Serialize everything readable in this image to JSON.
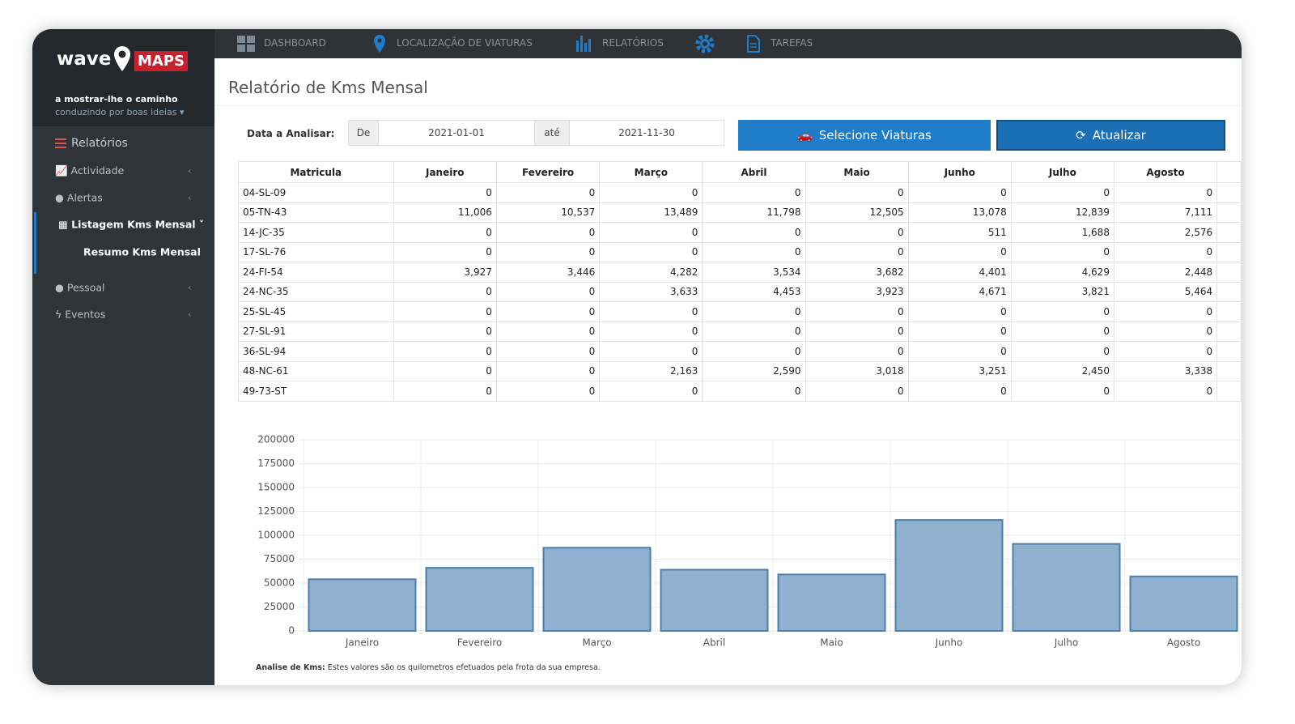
{
  "brand": {
    "wave": "wave",
    "maps": "MAPS",
    "tagline": "a mostrar-lhe o caminho",
    "subtagline": "conduzindo por boas ideias"
  },
  "sidebar": {
    "section": "Relatórios",
    "items": [
      "Actividade",
      "Alertas",
      "Listagem Kms Mensal",
      "Resumo Kms Mensal",
      "Pessoal",
      "Eventos"
    ]
  },
  "nav": [
    "DASHBOARD",
    "LOCALIZAÇÃO DE VIATURAS",
    "RELATÓRIOS",
    "TAREFAS"
  ],
  "page_title": "Relatório de Kms Mensal",
  "filter": {
    "label": "Data a Analisar:",
    "from_label": "De",
    "from": "2021-01-01",
    "to_label": "até",
    "to": "2021-11-30",
    "select_button": "Selecione Viaturas",
    "refresh_button": "Atualizar"
  },
  "table": {
    "headers": [
      "Matricula",
      "Janeiro",
      "Fevereiro",
      "Março",
      "Abril",
      "Maio",
      "Junho",
      "Julho",
      "Agosto"
    ],
    "rows": [
      [
        "04-SL-09",
        "0",
        "0",
        "0",
        "0",
        "0",
        "0",
        "0",
        "0"
      ],
      [
        "05-TN-43",
        "11,006",
        "10,537",
        "13,489",
        "11,798",
        "12,505",
        "13,078",
        "12,839",
        "7,111"
      ],
      [
        "14-JC-35",
        "0",
        "0",
        "0",
        "0",
        "0",
        "511",
        "1,688",
        "2,576"
      ],
      [
        "17-SL-76",
        "0",
        "0",
        "0",
        "0",
        "0",
        "0",
        "0",
        "0"
      ],
      [
        "24-FI-54",
        "3,927",
        "3,446",
        "4,282",
        "3,534",
        "3,682",
        "4,401",
        "4,629",
        "2,448"
      ],
      [
        "24-NC-35",
        "0",
        "0",
        "3,633",
        "4,453",
        "3,923",
        "4,671",
        "3,821",
        "5,464"
      ],
      [
        "25-SL-45",
        "0",
        "0",
        "0",
        "0",
        "0",
        "0",
        "0",
        "0"
      ],
      [
        "27-SL-91",
        "0",
        "0",
        "0",
        "0",
        "0",
        "0",
        "0",
        "0"
      ],
      [
        "36-SL-94",
        "0",
        "0",
        "0",
        "0",
        "0",
        "0",
        "0",
        "0"
      ],
      [
        "48-NC-61",
        "0",
        "0",
        "2,163",
        "2,590",
        "3,018",
        "3,251",
        "2,450",
        "3,338"
      ],
      [
        "49-73-ST",
        "0",
        "0",
        "0",
        "0",
        "0",
        "0",
        "0",
        "0"
      ]
    ]
  },
  "chart_data": {
    "type": "bar",
    "categories": [
      "Janeiro",
      "Fevereiro",
      "Março",
      "Abril",
      "Maio",
      "Junho",
      "Julho",
      "Agosto"
    ],
    "values": [
      54000,
      66000,
      87000,
      64000,
      59000,
      116000,
      91000,
      57000
    ],
    "color": "#8fb0cf",
    "ylim": [
      0,
      200000
    ],
    "yticks": [
      0,
      25000,
      50000,
      75000,
      100000,
      125000,
      150000,
      175000,
      200000
    ],
    "grid": true
  },
  "footnote": {
    "bold": "Analise de Kms:",
    "text": "Estes valores são os quilometros efetuados pela frota da sua empresa."
  }
}
